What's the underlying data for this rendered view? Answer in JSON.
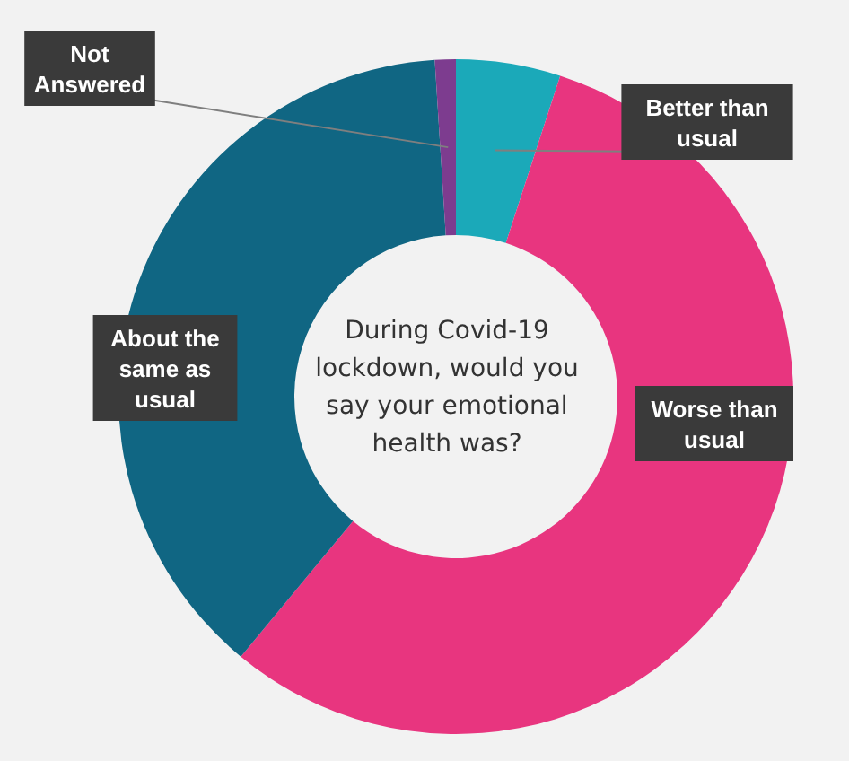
{
  "chart_data": {
    "type": "donut",
    "title": "During Covid-19 lockdown, would you say your emotional health was?",
    "categories": [
      "Better than usual",
      "Worse than usual",
      "About the same as usual",
      "Not Answered"
    ],
    "values": [
      5,
      56,
      38,
      1
    ],
    "colors": [
      "#1ba9b9",
      "#e8357f",
      "#106683",
      "#7d3c8f"
    ]
  }
}
